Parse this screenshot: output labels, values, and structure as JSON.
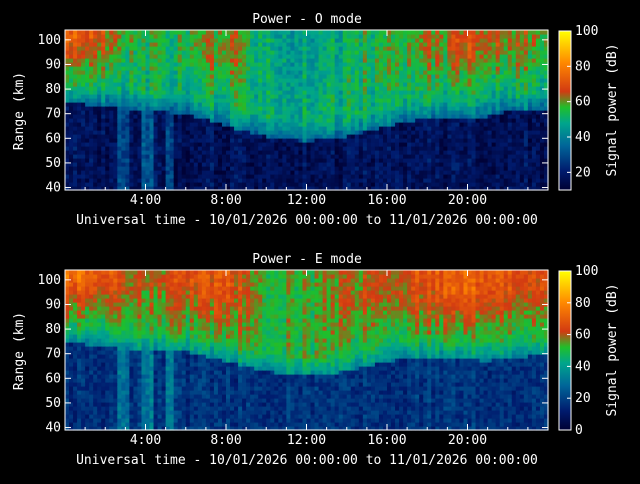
{
  "chart_data": [
    {
      "type": "heatmap",
      "title": "Power - O mode",
      "xlabel": "Universal time - 10/01/2026 00:00:00 to 11/01/2026 00:00:00",
      "ylabel": "Range (km)",
      "colorbar_label": "Signal power (dB)",
      "x_ticks": [
        "4:00",
        "8:00",
        "12:00",
        "16:00",
        "20:00"
      ],
      "y_ticks": [
        "40",
        "50",
        "60",
        "70",
        "80",
        "90",
        "100"
      ],
      "cbar_ticks": [
        "20",
        "40",
        "60",
        "80",
        "100"
      ],
      "xlim_hours": [
        0,
        24
      ],
      "ylim_km": [
        39,
        104
      ],
      "clim_db": [
        10,
        100
      ],
      "colormap": [
        "#000033",
        "#001b6e",
        "#006699",
        "#00a58c",
        "#1fbf2a",
        "#d23a12",
        "#ff8800",
        "#ffff00"
      ],
      "lower_boundary_km": {
        "hours": [
          0,
          1,
          2,
          3,
          4,
          5,
          6,
          7,
          8,
          9,
          10,
          11,
          12,
          13,
          14,
          15,
          16,
          17,
          18,
          19,
          20,
          21,
          22,
          23,
          24
        ],
        "range": [
          77,
          77,
          76,
          75,
          75,
          74,
          73,
          71,
          68,
          66,
          64,
          63,
          62,
          63,
          64,
          66,
          68,
          70,
          71,
          72,
          72,
          72,
          74,
          74,
          74
        ]
      },
      "upper_layer_power_db": {
        "hours": [
          0,
          2,
          4,
          6,
          8,
          10,
          12,
          14,
          16,
          18,
          20,
          22,
          24
        ],
        "power": [
          68,
          62,
          48,
          52,
          58,
          45,
          42,
          46,
          50,
          55,
          62,
          58,
          55
        ]
      }
    },
    {
      "type": "heatmap",
      "title": "Power - E mode",
      "xlabel": "Universal time - 10/01/2026 00:00:00 to 11/01/2026 00:00:00",
      "ylabel": "Range (km)",
      "colorbar_label": "Signal power (dB)",
      "x_ticks": [
        "4:00",
        "8:00",
        "12:00",
        "16:00",
        "20:00"
      ],
      "y_ticks": [
        "40",
        "50",
        "60",
        "70",
        "80",
        "90",
        "100"
      ],
      "cbar_ticks": [
        "0",
        "20",
        "40",
        "60",
        "80",
        "100"
      ],
      "xlim_hours": [
        0,
        24
      ],
      "ylim_km": [
        39,
        104
      ],
      "clim_db": [
        0,
        100
      ],
      "colormap": [
        "#000033",
        "#001b6e",
        "#006699",
        "#00a58c",
        "#1fbf2a",
        "#d23a12",
        "#ff8800",
        "#ffff00"
      ],
      "lower_boundary_km": {
        "hours": [
          0,
          1,
          2,
          3,
          4,
          5,
          6,
          7,
          8,
          9,
          10,
          11,
          12,
          13,
          14,
          15,
          16,
          17,
          18,
          19,
          20,
          21,
          22,
          23,
          24
        ],
        "range": [
          77,
          77,
          76,
          75,
          75,
          74,
          74,
          72,
          70,
          68,
          66,
          65,
          64,
          65,
          66,
          68,
          70,
          71,
          72,
          72,
          71,
          70,
          72,
          72,
          73
        ]
      },
      "upper_layer_power_db": {
        "hours": [
          0,
          2,
          4,
          6,
          8,
          10,
          12,
          14,
          16,
          18,
          20,
          22,
          24
        ],
        "power": [
          75,
          66,
          52,
          60,
          64,
          48,
          46,
          54,
          58,
          62,
          66,
          64,
          60
        ]
      }
    }
  ]
}
